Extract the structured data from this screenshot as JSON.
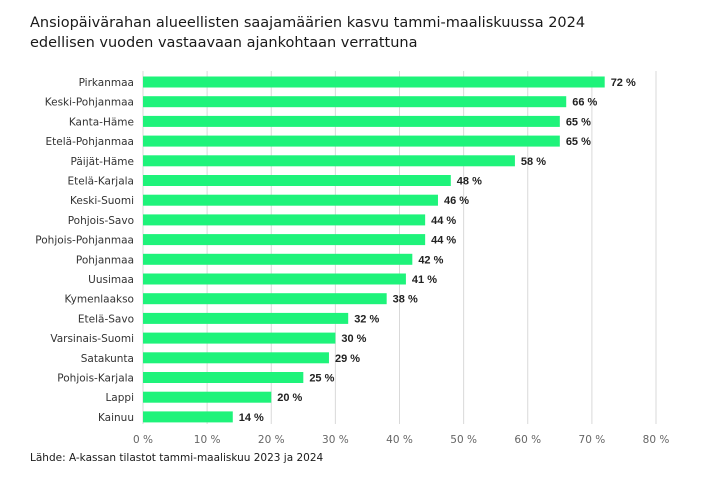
{
  "chart_data": {
    "type": "bar",
    "orientation": "horizontal",
    "title_lines": [
      "Ansiopäivärahan alueellisten saajamäärien kasvu tammi-maaliskuussa 2024",
      "edellisen vuoden vastaavaan ajankohtaan verrattuna"
    ],
    "categories": [
      "Pirkanmaa",
      "Keski-Pohjanmaa",
      "Kanta-Häme",
      "Etelä-Pohjanmaa",
      "Päijät-Häme",
      "Etelä-Karjala",
      "Keski-Suomi",
      "Pohjois-Savo",
      "Pohjois-Pohjanmaa",
      "Pohjanmaa",
      "Uusimaa",
      "Kymenlaakso",
      "Etelä-Savo",
      "Varsinais-Suomi",
      "Satakunta",
      "Pohjois-Karjala",
      "Lappi",
      "Kainuu"
    ],
    "values": [
      72,
      66,
      65,
      65,
      58,
      48,
      46,
      44,
      44,
      42,
      41,
      38,
      32,
      30,
      29,
      25,
      20,
      14
    ],
    "value_labels": [
      "72 %",
      "66 %",
      "65 %",
      "65 %",
      "58 %",
      "48 %",
      "46 %",
      "44 %",
      "44 %",
      "42 %",
      "41 %",
      "38 %",
      "32 %",
      "30 %",
      "29 %",
      "25 %",
      "20 %",
      "14 %"
    ],
    "xlim": [
      0,
      80
    ],
    "xticks": [
      0,
      10,
      20,
      30,
      40,
      50,
      60,
      70,
      80
    ],
    "xtick_labels": [
      "0 %",
      "10 %",
      "20 %",
      "30 %",
      "40 %",
      "50 %",
      "60 %",
      "70 %",
      "80 %"
    ],
    "grid": "vertical",
    "bar_color": "#1ef37a",
    "source": "Lähde: A-kassan tilastot tammi-maaliskuu 2023 ja 2024"
  }
}
